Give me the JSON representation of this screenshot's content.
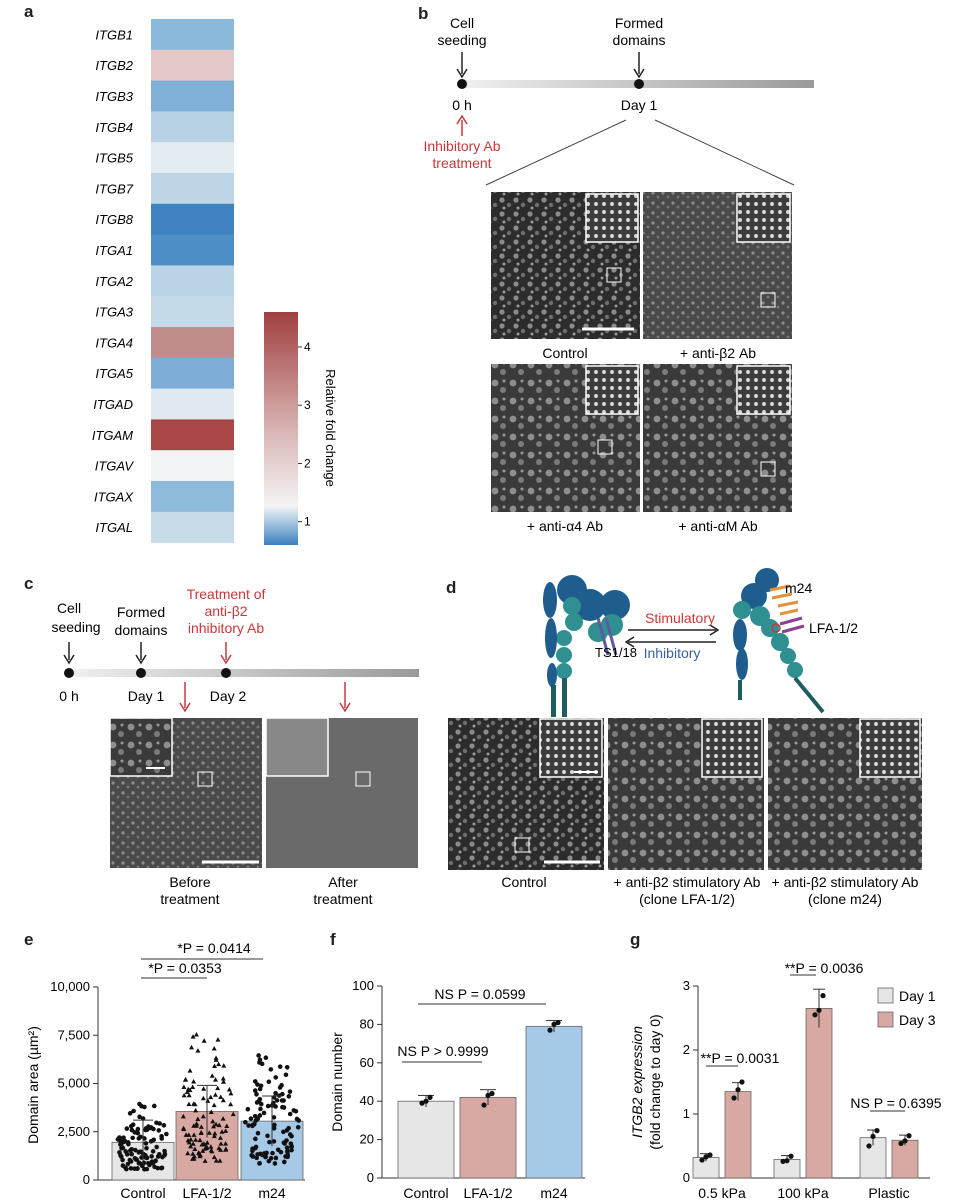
{
  "panel_letters": {
    "a": "a",
    "b": "b",
    "c": "c",
    "d": "d",
    "e": "e",
    "f": "f",
    "g": "g"
  },
  "panel_a": {
    "genes": [
      "ITGB1",
      "ITGB2",
      "ITGB3",
      "ITGB4",
      "ITGB5",
      "ITGB7",
      "ITGB8",
      "ITGA1",
      "ITGA2",
      "ITGA3",
      "ITGA4",
      "ITGA5",
      "ITGAD",
      "ITGAM",
      "ITGAV",
      "ITGAX",
      "ITGAL"
    ],
    "colors": [
      "#8bb9dc",
      "#e5c8c8",
      "#80b0d8",
      "#b7d1e5",
      "#e3edf1",
      "#bdd5e7",
      "#3f84c0",
      "#4e8fc8",
      "#bad3e6",
      "#c5dae9",
      "#c08c8c",
      "#7eaed8",
      "#dfe9ef",
      "#a94646",
      "#f1f4f5",
      "#8ebadc",
      "#c8dbe9"
    ],
    "colorbar_label": "Relative fold change",
    "colorbar_ticks": [
      "1",
      "2",
      "3",
      "4"
    ]
  },
  "panel_b": {
    "timeline_top": [
      "Cell",
      "seeding",
      "Formed",
      "domains"
    ],
    "timeline_bottom": [
      "0 h",
      "Day 1"
    ],
    "inhibitory": [
      "Inhibitory Ab",
      "treatment"
    ],
    "captions": [
      "Control",
      "+ anti-β2 Ab",
      "+ anti-α4 Ab",
      "+ anti-αM Ab"
    ]
  },
  "panel_c": {
    "labels": [
      "Cell",
      "seeding",
      "Formed",
      "domains"
    ],
    "treatment": [
      "Treatment of",
      "anti-β2",
      "inhibitory Ab"
    ],
    "times": [
      "0 h",
      "Day 1",
      "Day 2"
    ],
    "captions": [
      "Before",
      "treatment",
      "After",
      "treatment"
    ]
  },
  "panel_d": {
    "labels": [
      "m24",
      "LFA-1/2",
      "TS1/18",
      "Stimulatory",
      "Inhibitory"
    ],
    "captions": [
      "Control",
      "+ anti-β2 stimulatory Ab",
      "(clone LFA-1/2)",
      "+ anti-β2 stimulatory Ab",
      "(clone m24)"
    ]
  },
  "colors": {
    "red_text": "#c8383a",
    "blue_text": "#3a5fa0",
    "teal": "#2f8f91",
    "dark_teal": "#1e5c5e",
    "navy": "#1f5d8f",
    "orange": "#e0933a",
    "purple": "#8e3e95"
  },
  "chart_data": [
    {
      "panel": "e",
      "type": "bar",
      "categories": [
        "Control",
        "LFA-1/2",
        "m24"
      ],
      "values": [
        1950,
        3550,
        3050
      ],
      "errors": [
        1150,
        1350,
        1300
      ],
      "bar_colors": [
        "#e6e6e6",
        "#d8a9a2",
        "#a7c9e8"
      ],
      "ylabel": "Domain area (µm²)",
      "yticks": [
        "0",
        "2,500",
        "5,000",
        "7,500",
        "10,000"
      ],
      "ylim": [
        0,
        10000
      ],
      "annotations": [
        "*P = 0.0414",
        "*P = 0.0353"
      ]
    },
    {
      "panel": "f",
      "type": "bar",
      "categories": [
        "Control",
        "LFA-1/2",
        "m24"
      ],
      "values": [
        40,
        42,
        79
      ],
      "errors": [
        3,
        4,
        3
      ],
      "points": [
        [
          39,
          40,
          42
        ],
        [
          38,
          43,
          44
        ],
        [
          77,
          80,
          81
        ]
      ],
      "bar_colors": [
        "#e6e6e6",
        "#d8a9a2",
        "#a7c9e8"
      ],
      "ylabel": "Domain number",
      "yticks": [
        "0",
        "20",
        "40",
        "60",
        "80",
        "100"
      ],
      "ylim": [
        0,
        100
      ],
      "annotations": [
        "NS P = 0.0599",
        "NS P > 0.9999"
      ]
    },
    {
      "panel": "g",
      "type": "bar",
      "categories": [
        "0.5 kPa",
        "100 kPa",
        "Plastic"
      ],
      "series": [
        {
          "name": "Day 1",
          "values": [
            0.32,
            0.29,
            0.63
          ],
          "errors": [
            0.06,
            0.06,
            0.12
          ],
          "points": [
            [
              0.28,
              0.33,
              0.36
            ],
            [
              0.26,
              0.27,
              0.34
            ],
            [
              0.5,
              0.65,
              0.74
            ]
          ]
        },
        {
          "name": "Day 3",
          "values": [
            1.35,
            2.65,
            0.59
          ],
          "errors": [
            0.14,
            0.3,
            0.08
          ],
          "points": [
            [
              1.25,
              1.38,
              1.5
            ],
            [
              2.55,
              2.62,
              2.85
            ],
            [
              0.54,
              0.58,
              0.66
            ]
          ]
        }
      ],
      "bar_colors": [
        "#e6e6e6",
        "#d8a9a2"
      ],
      "ylabel": "ITGB2 expression",
      "ylabel2": "(fold change to day 0)",
      "yticks": [
        "0",
        "1",
        "2",
        "3"
      ],
      "ylim": [
        0,
        3
      ],
      "annotations": [
        "**P = 0.0036",
        "**P = 0.0031",
        "NS P = 0.6395"
      ]
    }
  ]
}
